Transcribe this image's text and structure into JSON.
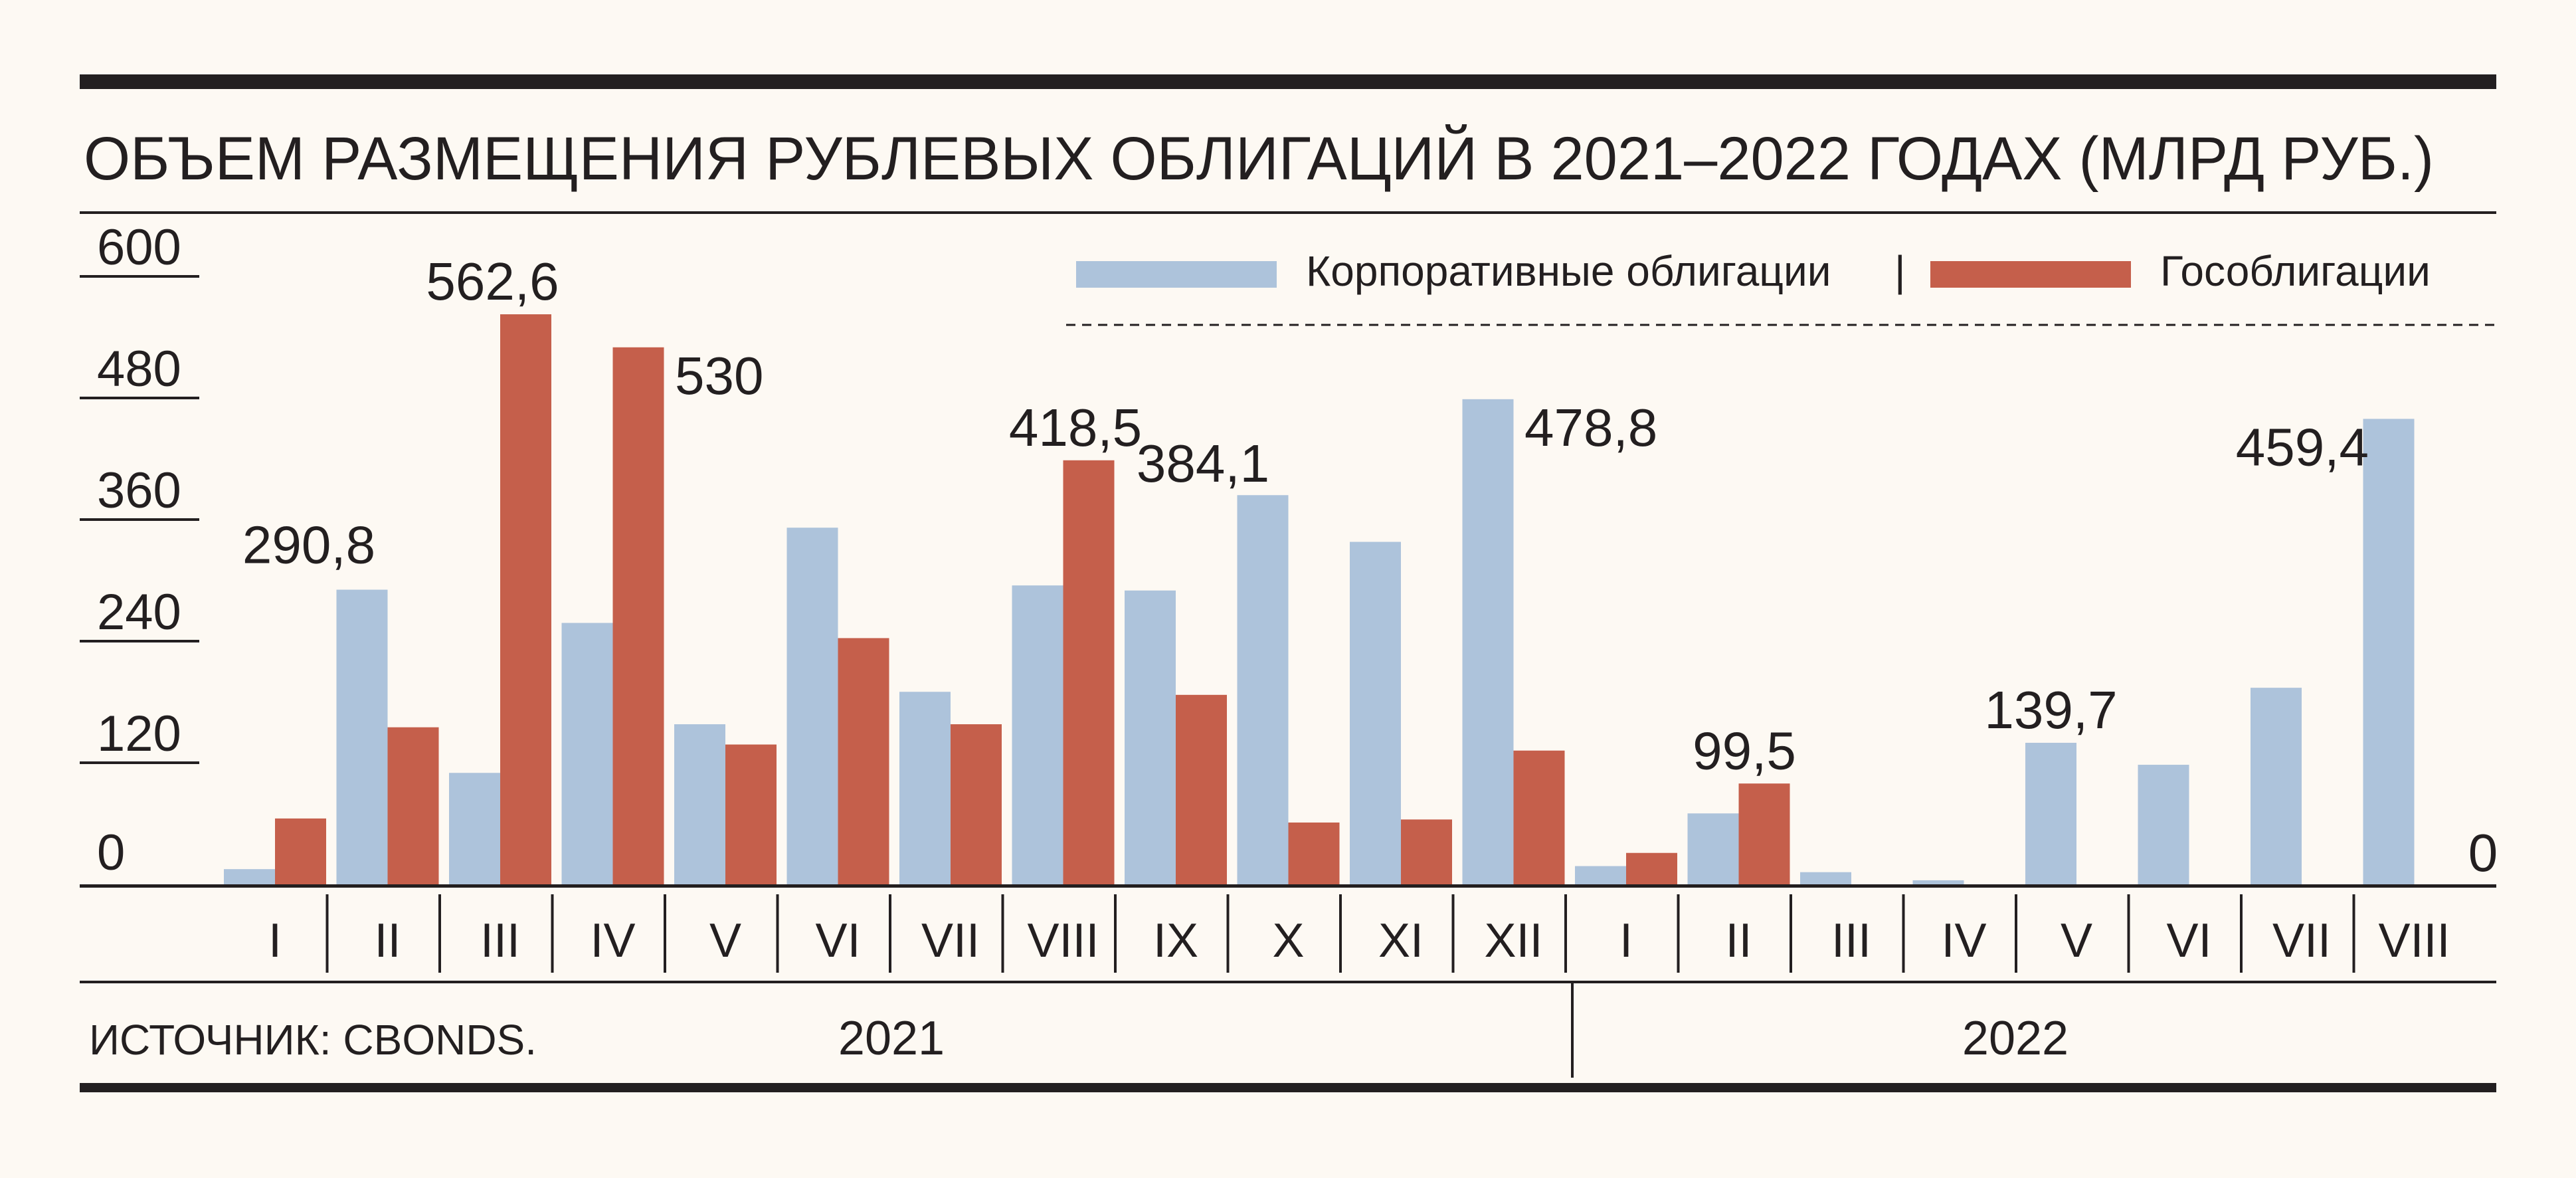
{
  "chart_data": {
    "type": "bar",
    "title": "ОБЪЕМ РАЗМЕЩЕНИЯ РУБЛЕВЫХ ОБЛИГАЦИЙ В 2021–2022 ГОДАХ (МЛРД РУБ.)",
    "categories": [
      "I",
      "II",
      "III",
      "IV",
      "V",
      "VI",
      "VII",
      "VIII",
      "IX",
      "X",
      "XI",
      "XII",
      "I",
      "II",
      "III",
      "IV",
      "V",
      "VI",
      "VII",
      "VIII"
    ],
    "years": [
      {
        "label": "2021",
        "months": 12
      },
      {
        "label": "2022",
        "months": 8
      }
    ],
    "yticks": [
      0,
      120,
      240,
      360,
      480,
      600
    ],
    "ylim": [
      0,
      600
    ],
    "legend_position": "top-right",
    "legend_separator": "|",
    "series": [
      {
        "name": "Корпоративные облигации",
        "color": "#adc3db",
        "values": [
          15,
          290.8,
          110,
          258,
          158,
          352,
          190,
          295,
          290,
          384.1,
          338,
          478.8,
          18,
          70,
          12,
          4,
          139.7,
          118,
          194,
          459.4
        ]
      },
      {
        "name": "Гособлигации",
        "color": "#c55f4b",
        "values": [
          65,
          155,
          562.6,
          530,
          138,
          243,
          158,
          418.5,
          187,
          61,
          64,
          132,
          31,
          99.5,
          0,
          0,
          0,
          0,
          0,
          0
        ]
      }
    ],
    "annotations": [
      {
        "text": "290,8",
        "index": 1,
        "series": 0
      },
      {
        "text": "562,6",
        "index": 2,
        "series": 1
      },
      {
        "text": "530",
        "index": 3,
        "series": 1
      },
      {
        "text": "418,5",
        "index": 7,
        "series": 1
      },
      {
        "text": "384,1",
        "index": 9,
        "series": 0
      },
      {
        "text": "478,8",
        "index": 11,
        "series": 0
      },
      {
        "text": "99,5",
        "index": 13,
        "series": 1
      },
      {
        "text": "139,7",
        "index": 16,
        "series": 0
      },
      {
        "text": "459,4",
        "index": 19,
        "series": 0
      },
      {
        "text": "0",
        "index": 19,
        "series": 1
      }
    ]
  },
  "source": "ИСТОЧНИК: CBONDS."
}
